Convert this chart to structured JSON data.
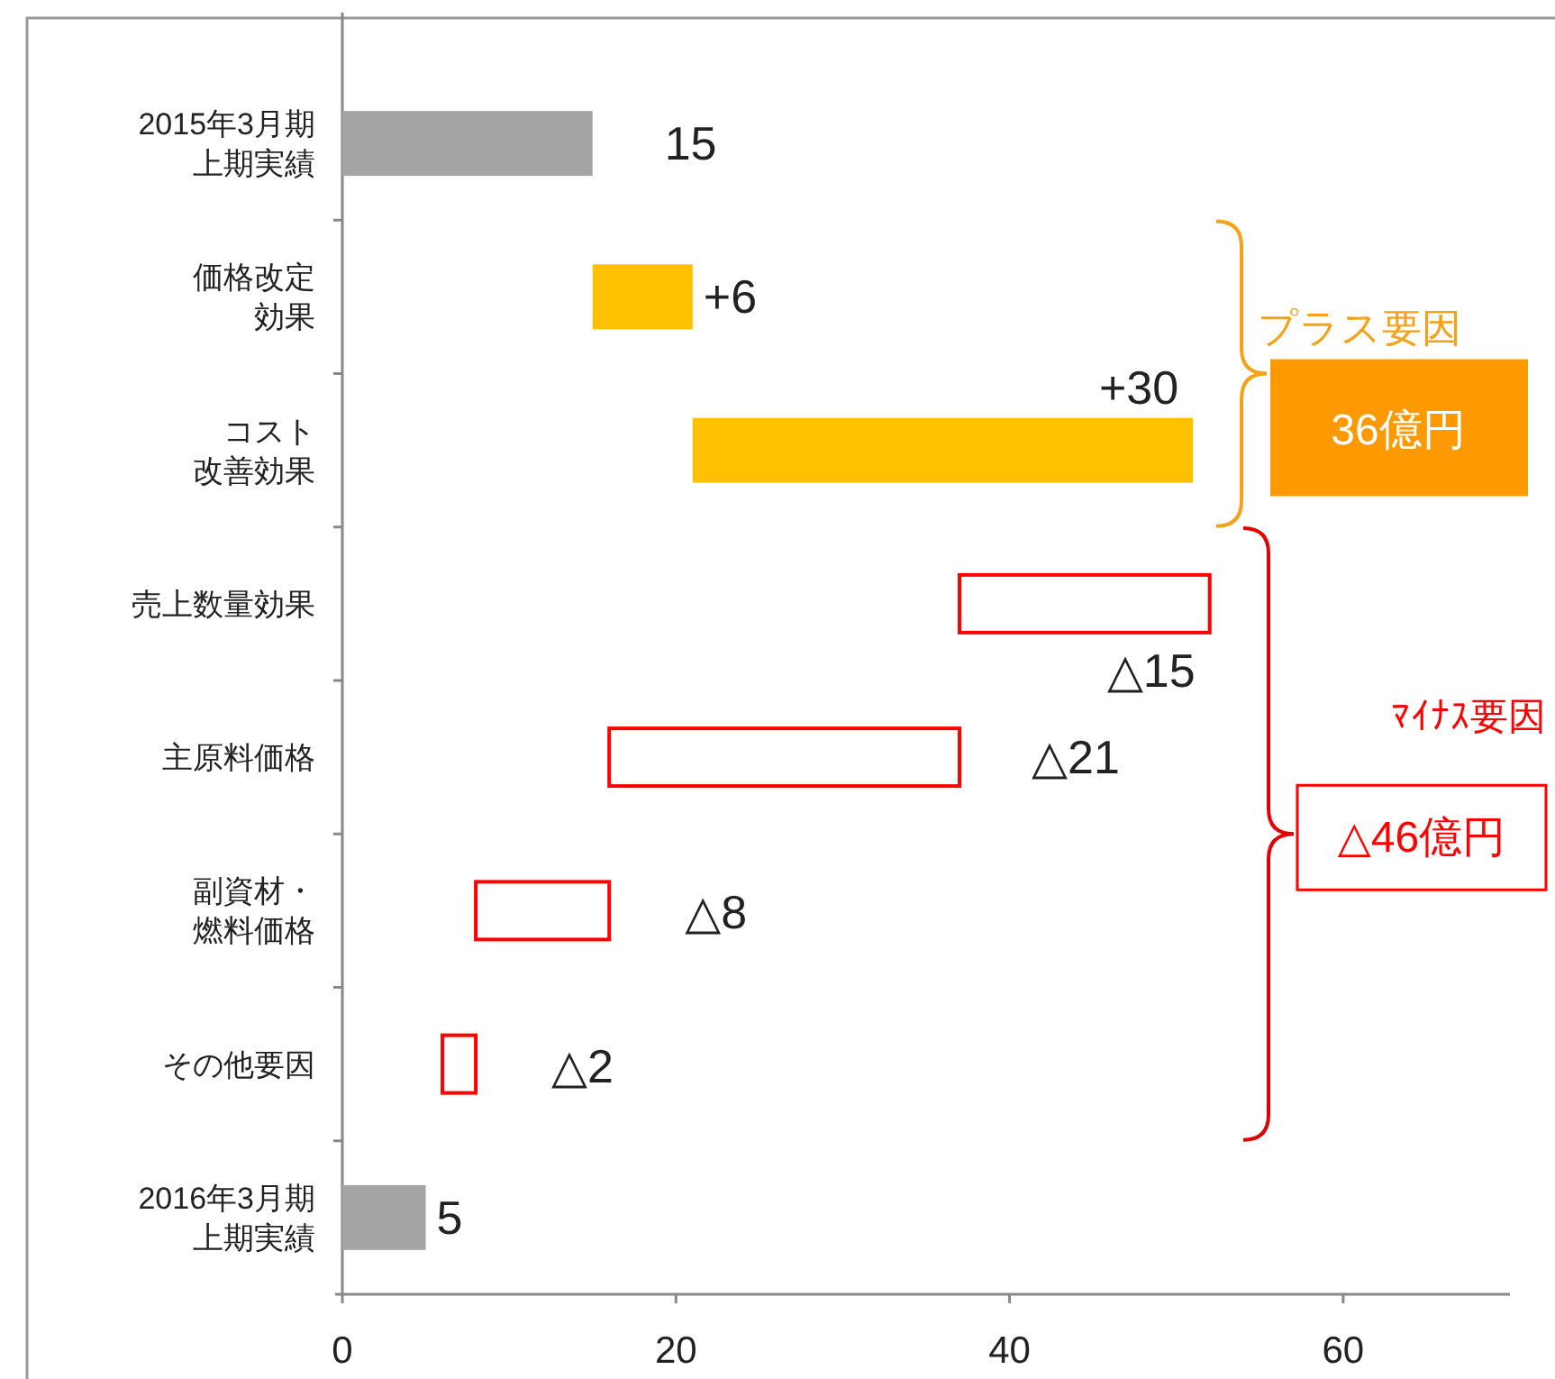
{
  "chart_data": {
    "type": "bar",
    "orientation": "horizontal",
    "categories": [
      "2015年3月期上期実績",
      "価格改定効果",
      "コスト改善効果",
      "売上数量効果",
      "主原料価格",
      "副資材・燃料価格",
      "その他要因",
      "2016年3月期上期実績"
    ],
    "values": [
      15,
      6,
      30,
      -15,
      -21,
      -8,
      -2,
      5
    ],
    "base": [
      0,
      15,
      21,
      52,
      37,
      16,
      8,
      0
    ],
    "colors": [
      "#a5a5a5",
      "#ffc000",
      "#ffc000",
      "#ff0000",
      "#ff0000",
      "#ff0000",
      "#ff0000",
      "#a5a5a5"
    ],
    "value_labels": [
      "15",
      "+6",
      "+30",
      "△15",
      "△21",
      "△8",
      "△2",
      "5"
    ],
    "xlim": [
      0,
      70
    ],
    "xticks": [
      0,
      20,
      40,
      60
    ],
    "annotations": [
      "プラス要因",
      "36億円",
      "ﾏｲﾅｽ要因",
      "△46億円"
    ]
  }
}
